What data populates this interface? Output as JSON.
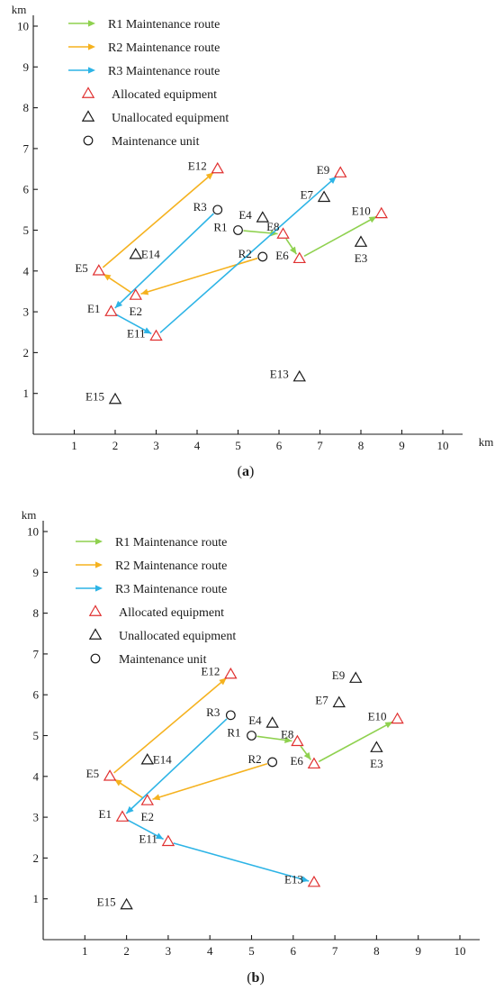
{
  "chart_data": [
    {
      "type": "scatter",
      "panel_label": "a",
      "xunit": "km",
      "yunit": "km",
      "xlim": [
        0,
        10
      ],
      "ylim": [
        0,
        10
      ],
      "xticks": [
        "1",
        "2",
        "3",
        "4",
        "5",
        "6",
        "7",
        "8",
        "9",
        "10"
      ],
      "yticks": [
        "1",
        "2",
        "3",
        "4",
        "5",
        "6",
        "7",
        "8",
        "9",
        "10"
      ],
      "legend": {
        "position": "top-left",
        "entries": [
          {
            "label": "R1 Maintenance route",
            "kind": "arrow",
            "color": "#8fd14f"
          },
          {
            "label": "R2 Maintenance route",
            "kind": "arrow",
            "color": "#f5b21f"
          },
          {
            "label": "R3 Maintenance route",
            "kind": "arrow",
            "color": "#2db4e6"
          },
          {
            "label": "Allocated equipment",
            "kind": "triangle",
            "color": "#e03030"
          },
          {
            "label": "Unallocated equipment",
            "kind": "triangle",
            "color": "#1a1a1a"
          },
          {
            "label": "Maintenance unit",
            "kind": "circle",
            "color": "#1a1a1a"
          }
        ]
      },
      "units": [
        {
          "name": "R1",
          "x": 5.0,
          "y": 5.0,
          "label_pos": "left"
        },
        {
          "name": "R2",
          "x": 5.6,
          "y": 4.35,
          "label_pos": "left"
        },
        {
          "name": "R3",
          "x": 4.5,
          "y": 5.5,
          "label_pos": "left"
        }
      ],
      "equipment": [
        {
          "name": "E1",
          "x": 1.9,
          "y": 3.0,
          "status": "allocated",
          "label_pos": "left"
        },
        {
          "name": "E2",
          "x": 2.5,
          "y": 3.4,
          "status": "allocated",
          "label_pos": "below"
        },
        {
          "name": "E3",
          "x": 8.0,
          "y": 4.7,
          "status": "unallocated",
          "label_pos": "below"
        },
        {
          "name": "E4",
          "x": 5.6,
          "y": 5.3,
          "status": "unallocated",
          "label_pos": "left"
        },
        {
          "name": "E5",
          "x": 1.6,
          "y": 4.0,
          "status": "allocated",
          "label_pos": "left"
        },
        {
          "name": "E6",
          "x": 6.5,
          "y": 4.3,
          "status": "allocated",
          "label_pos": "left"
        },
        {
          "name": "E7",
          "x": 7.1,
          "y": 5.8,
          "status": "unallocated",
          "label_pos": "left"
        },
        {
          "name": "E8",
          "x": 6.1,
          "y": 4.9,
          "status": "allocated",
          "label_pos": "above-left"
        },
        {
          "name": "E9",
          "x": 7.5,
          "y": 6.4,
          "status": "allocated",
          "label_pos": "left"
        },
        {
          "name": "E10",
          "x": 8.5,
          "y": 5.4,
          "status": "allocated",
          "label_pos": "left"
        },
        {
          "name": "E11",
          "x": 3.0,
          "y": 2.4,
          "status": "allocated",
          "label_pos": "left"
        },
        {
          "name": "E12",
          "x": 4.5,
          "y": 6.5,
          "status": "allocated",
          "label_pos": "left"
        },
        {
          "name": "E13",
          "x": 6.5,
          "y": 1.4,
          "status": "unallocated",
          "label_pos": "left"
        },
        {
          "name": "E14",
          "x": 2.5,
          "y": 4.4,
          "status": "unallocated",
          "label_pos": "right"
        },
        {
          "name": "E15",
          "x": 2.0,
          "y": 0.85,
          "status": "unallocated",
          "label_pos": "left"
        }
      ],
      "routes": [
        {
          "route": "R1",
          "color": "#8fd14f",
          "path": [
            "R1",
            "E8",
            "E6",
            "E10"
          ]
        },
        {
          "route": "R2",
          "color": "#f5b21f",
          "path": [
            "R2",
            "E2",
            "E5",
            "E12"
          ]
        },
        {
          "route": "R3",
          "color": "#2db4e6",
          "path": [
            "R3",
            "E1",
            "E11",
            "E9"
          ]
        }
      ]
    },
    {
      "type": "scatter",
      "panel_label": "b",
      "xunit": "",
      "yunit": "km",
      "xlim": [
        0,
        10
      ],
      "ylim": [
        0,
        10
      ],
      "xticks": [
        "1",
        "2",
        "3",
        "4",
        "5",
        "6",
        "7",
        "8",
        "9",
        "10"
      ],
      "yticks": [
        "1",
        "2",
        "3",
        "4",
        "5",
        "6",
        "7",
        "8",
        "9",
        "10"
      ],
      "legend": {
        "position": "top-left",
        "entries": [
          {
            "label": "R1 Maintenance route",
            "kind": "arrow",
            "color": "#8fd14f"
          },
          {
            "label": "R2 Maintenance route",
            "kind": "arrow",
            "color": "#f5b21f"
          },
          {
            "label": "R3 Maintenance route",
            "kind": "arrow",
            "color": "#2db4e6"
          },
          {
            "label": "Allocated equipment",
            "kind": "triangle",
            "color": "#e03030"
          },
          {
            "label": "Unallocated equipment",
            "kind": "triangle",
            "color": "#1a1a1a"
          },
          {
            "label": "Maintenance unit",
            "kind": "circle",
            "color": "#1a1a1a"
          }
        ]
      },
      "units": [
        {
          "name": "R1",
          "x": 5.0,
          "y": 5.0,
          "label_pos": "left"
        },
        {
          "name": "R2",
          "x": 5.5,
          "y": 4.35,
          "label_pos": "left"
        },
        {
          "name": "R3",
          "x": 4.5,
          "y": 5.5,
          "label_pos": "left"
        }
      ],
      "equipment": [
        {
          "name": "E1",
          "x": 1.9,
          "y": 3.0,
          "status": "allocated",
          "label_pos": "left"
        },
        {
          "name": "E2",
          "x": 2.5,
          "y": 3.4,
          "status": "allocated",
          "label_pos": "below"
        },
        {
          "name": "E3",
          "x": 8.0,
          "y": 4.7,
          "status": "unallocated",
          "label_pos": "below"
        },
        {
          "name": "E4",
          "x": 5.5,
          "y": 5.3,
          "status": "unallocated",
          "label_pos": "left"
        },
        {
          "name": "E5",
          "x": 1.6,
          "y": 4.0,
          "status": "allocated",
          "label_pos": "left"
        },
        {
          "name": "E6",
          "x": 6.5,
          "y": 4.3,
          "status": "allocated",
          "label_pos": "left"
        },
        {
          "name": "E7",
          "x": 7.1,
          "y": 5.8,
          "status": "unallocated",
          "label_pos": "left"
        },
        {
          "name": "E8",
          "x": 6.1,
          "y": 4.85,
          "status": "allocated",
          "label_pos": "above-left"
        },
        {
          "name": "E9",
          "x": 7.5,
          "y": 6.4,
          "status": "unallocated",
          "label_pos": "left"
        },
        {
          "name": "E10",
          "x": 8.5,
          "y": 5.4,
          "status": "allocated",
          "label_pos": "left"
        },
        {
          "name": "E11",
          "x": 3.0,
          "y": 2.4,
          "status": "allocated",
          "label_pos": "left"
        },
        {
          "name": "E12",
          "x": 4.5,
          "y": 6.5,
          "status": "allocated",
          "label_pos": "left"
        },
        {
          "name": "E13",
          "x": 6.5,
          "y": 1.4,
          "status": "allocated",
          "label_pos": "left"
        },
        {
          "name": "E14",
          "x": 2.5,
          "y": 4.4,
          "status": "unallocated",
          "label_pos": "right"
        },
        {
          "name": "E15",
          "x": 2.0,
          "y": 0.85,
          "status": "unallocated",
          "label_pos": "left"
        }
      ],
      "routes": [
        {
          "route": "R1",
          "color": "#8fd14f",
          "path": [
            "R1",
            "E8",
            "E6",
            "E10"
          ]
        },
        {
          "route": "R2",
          "color": "#f5b21f",
          "path": [
            "R2",
            "E2",
            "E5",
            "E12"
          ]
        },
        {
          "route": "R3",
          "color": "#2db4e6",
          "path": [
            "R3",
            "E1",
            "E11",
            "E13"
          ]
        }
      ]
    }
  ]
}
